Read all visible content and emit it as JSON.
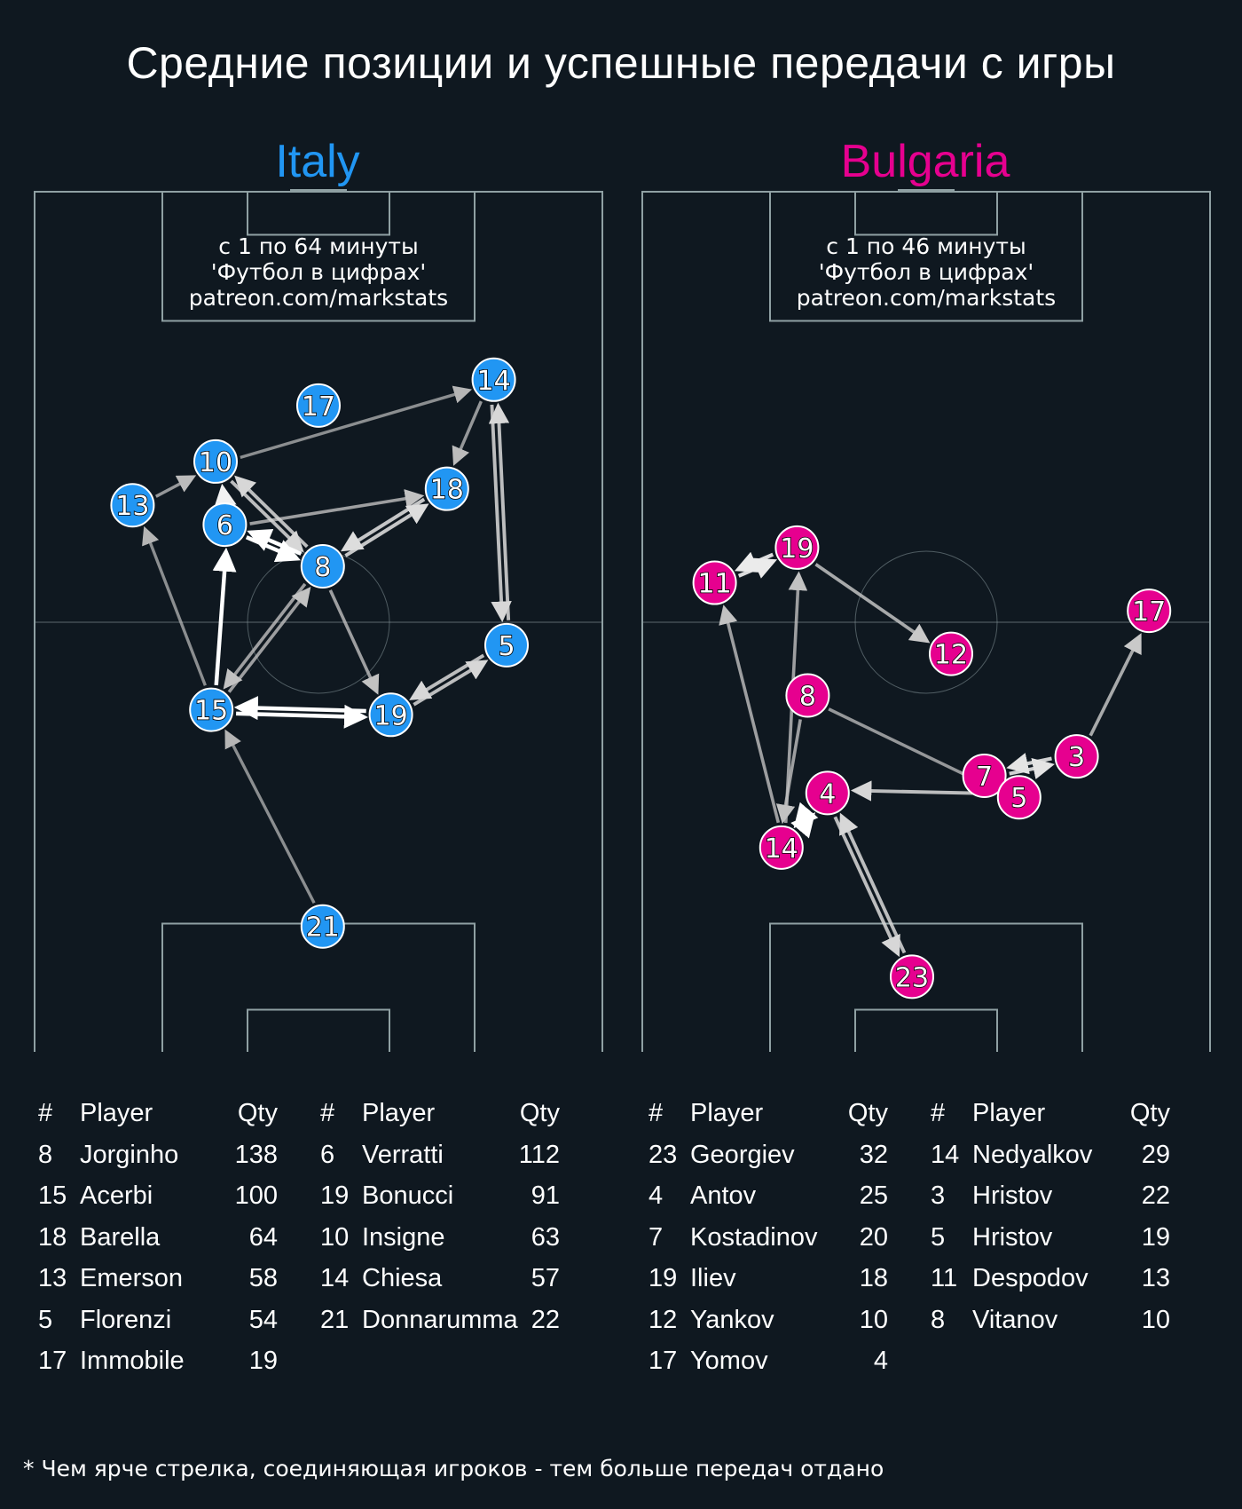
{
  "title": "Средние позиции и успешные передачи с игры",
  "footnote": "* Чем ярче стрелка, соединяющая игроков - тем больше передач отдано",
  "colors": {
    "background": "#0f1820",
    "italy": "#2196f3",
    "bulgaria": "#e6008f",
    "pitch_lines": "#8fa0a3"
  },
  "chart_data": [
    {
      "type": "scatter",
      "team": "Italy",
      "caption": [
        "с 1 по 64 минуты",
        "'Футбол в цифрах'",
        "patreon.com/markstats"
      ],
      "xlim": [
        0,
        80
      ],
      "ylim": [
        0,
        120
      ],
      "players": [
        {
          "num": "14",
          "x": 64.7,
          "y": 93.8
        },
        {
          "num": "17",
          "x": 40.0,
          "y": 90.2
        },
        {
          "num": "10",
          "x": 25.5,
          "y": 82.4
        },
        {
          "num": "18",
          "x": 58.1,
          "y": 78.6
        },
        {
          "num": "13",
          "x": 13.8,
          "y": 76.3
        },
        {
          "num": "6",
          "x": 26.8,
          "y": 73.6
        },
        {
          "num": "8",
          "x": 40.6,
          "y": 67.8
        },
        {
          "num": "5",
          "x": 66.5,
          "y": 56.8
        },
        {
          "num": "15",
          "x": 24.9,
          "y": 47.8
        },
        {
          "num": "19",
          "x": 50.2,
          "y": 47.1
        },
        {
          "num": "21",
          "x": 40.6,
          "y": 17.6
        }
      ],
      "passes": [
        {
          "from": "10",
          "to": "14",
          "strength": 0.45
        },
        {
          "from": "14",
          "to": "18",
          "strength": 0.5
        },
        {
          "from": "14",
          "to": "5",
          "strength": 0.7
        },
        {
          "from": "5",
          "to": "14",
          "strength": 0.7
        },
        {
          "from": "13",
          "to": "10",
          "strength": 0.5
        },
        {
          "from": "6",
          "to": "10",
          "strength": 0.9
        },
        {
          "from": "6",
          "to": "18",
          "strength": 0.55
        },
        {
          "from": "8",
          "to": "10",
          "strength": 0.7
        },
        {
          "from": "10",
          "to": "8",
          "strength": 0.7
        },
        {
          "from": "8",
          "to": "6",
          "strength": 1.0
        },
        {
          "from": "6",
          "to": "8",
          "strength": 1.0
        },
        {
          "from": "8",
          "to": "18",
          "strength": 0.75
        },
        {
          "from": "18",
          "to": "8",
          "strength": 0.75
        },
        {
          "from": "15",
          "to": "6",
          "strength": 1.0
        },
        {
          "from": "15",
          "to": "13",
          "strength": 0.45
        },
        {
          "from": "15",
          "to": "8",
          "strength": 0.55
        },
        {
          "from": "8",
          "to": "15",
          "strength": 0.55
        },
        {
          "from": "8",
          "to": "19",
          "strength": 0.55
        },
        {
          "from": "15",
          "to": "19",
          "strength": 1.0
        },
        {
          "from": "19",
          "to": "15",
          "strength": 1.0
        },
        {
          "from": "19",
          "to": "5",
          "strength": 0.7
        },
        {
          "from": "5",
          "to": "19",
          "strength": 0.7
        },
        {
          "from": "21",
          "to": "15",
          "strength": 0.45
        }
      ],
      "table": {
        "headers": [
          "#",
          "Player",
          "Qty"
        ],
        "columns": [
          [
            {
              "num": "8",
              "name": "Jorginho",
              "qty": "138"
            },
            {
              "num": "15",
              "name": "Acerbi",
              "qty": "100"
            },
            {
              "num": "18",
              "name": "Barella",
              "qty": "64"
            },
            {
              "num": "13",
              "name": "Emerson",
              "qty": "58"
            },
            {
              "num": "5",
              "name": "Florenzi",
              "qty": "54"
            },
            {
              "num": "17",
              "name": "Immobile",
              "qty": "19"
            }
          ],
          [
            {
              "num": "6",
              "name": "Verratti",
              "qty": "112"
            },
            {
              "num": "19",
              "name": "Bonucci",
              "qty": "91"
            },
            {
              "num": "10",
              "name": "Insigne",
              "qty": "63"
            },
            {
              "num": "14",
              "name": "Chiesa",
              "qty": "57"
            },
            {
              "num": "21",
              "name": "Donnarumma",
              "qty": "22"
            }
          ]
        ]
      }
    },
    {
      "type": "scatter",
      "team": "Bulgaria",
      "caption": [
        "с 1 по 46 минуты",
        "'Футбол в цифрах'",
        "patreon.com/markstats"
      ],
      "xlim": [
        0,
        80
      ],
      "ylim": [
        0,
        120
      ],
      "players": [
        {
          "num": "19",
          "x": 21.8,
          "y": 70.4
        },
        {
          "num": "11",
          "x": 10.2,
          "y": 65.5
        },
        {
          "num": "17",
          "x": 71.4,
          "y": 61.6
        },
        {
          "num": "12",
          "x": 43.5,
          "y": 55.6
        },
        {
          "num": "8",
          "x": 23.3,
          "y": 49.8
        },
        {
          "num": "3",
          "x": 61.2,
          "y": 41.3
        },
        {
          "num": "7",
          "x": 48.2,
          "y": 38.6
        },
        {
          "num": "5",
          "x": 53.1,
          "y": 35.6
        },
        {
          "num": "4",
          "x": 26.1,
          "y": 36.2
        },
        {
          "num": "14",
          "x": 19.6,
          "y": 28.6
        },
        {
          "num": "23",
          "x": 38.0,
          "y": 10.6
        }
      ],
      "passes": [
        {
          "from": "11",
          "to": "19",
          "strength": 0.85
        },
        {
          "from": "19",
          "to": "11",
          "strength": 0.85
        },
        {
          "from": "19",
          "to": "12",
          "strength": 0.6
        },
        {
          "from": "14",
          "to": "11",
          "strength": 0.55
        },
        {
          "from": "14",
          "to": "19",
          "strength": 0.55
        },
        {
          "from": "8",
          "to": "14",
          "strength": 0.55
        },
        {
          "from": "8",
          "to": "5",
          "strength": 0.5
        },
        {
          "from": "3",
          "to": "17",
          "strength": 0.6
        },
        {
          "from": "3",
          "to": "7",
          "strength": 0.8
        },
        {
          "from": "7",
          "to": "3",
          "strength": 0.8
        },
        {
          "from": "5",
          "to": "4",
          "strength": 0.7
        },
        {
          "from": "14",
          "to": "4",
          "strength": 1.0
        },
        {
          "from": "4",
          "to": "14",
          "strength": 1.0
        },
        {
          "from": "23",
          "to": "4",
          "strength": 0.7
        },
        {
          "from": "4",
          "to": "23",
          "strength": 0.7
        }
      ],
      "table": {
        "headers": [
          "#",
          "Player",
          "Qty"
        ],
        "columns": [
          [
            {
              "num": "23",
              "name": "Georgiev",
              "qty": "32"
            },
            {
              "num": "4",
              "name": "Antov",
              "qty": "25"
            },
            {
              "num": "7",
              "name": "Kostadinov",
              "qty": "20"
            },
            {
              "num": "19",
              "name": "Iliev",
              "qty": "18"
            },
            {
              "num": "12",
              "name": "Yankov",
              "qty": "10"
            },
            {
              "num": "17",
              "name": "Yomov",
              "qty": "4"
            }
          ],
          [
            {
              "num": "14",
              "name": "Nedyalkov",
              "qty": "29"
            },
            {
              "num": "3",
              "name": "Hristov",
              "qty": "22"
            },
            {
              "num": "5",
              "name": "Hristov",
              "qty": "19"
            },
            {
              "num": "11",
              "name": "Despodov",
              "qty": "13"
            },
            {
              "num": "8",
              "name": "Vitanov",
              "qty": "10"
            }
          ]
        ]
      }
    }
  ]
}
